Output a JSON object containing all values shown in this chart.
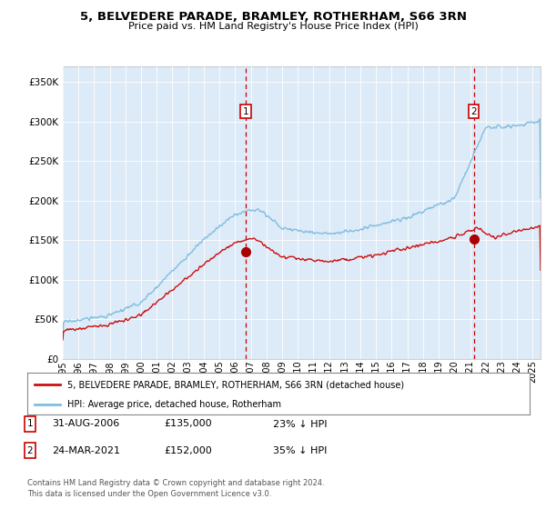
{
  "title": "5, BELVEDERE PARADE, BRAMLEY, ROTHERHAM, S66 3RN",
  "subtitle": "Price paid vs. HM Land Registry's House Price Index (HPI)",
  "background_color": "#ffffff",
  "plot_bg_color": "#ddeaf7",
  "ylim": [
    0,
    370000
  ],
  "yticks": [
    0,
    50000,
    100000,
    150000,
    200000,
    250000,
    300000,
    350000
  ],
  "ytick_labels": [
    "£0",
    "£50K",
    "£100K",
    "£150K",
    "£200K",
    "£250K",
    "£300K",
    "£350K"
  ],
  "xlim_start": 1995.0,
  "xlim_end": 2025.5,
  "xtick_years": [
    1995,
    1996,
    1997,
    1998,
    1999,
    2000,
    2001,
    2002,
    2003,
    2004,
    2005,
    2006,
    2007,
    2008,
    2009,
    2010,
    2011,
    2012,
    2013,
    2014,
    2015,
    2016,
    2017,
    2018,
    2019,
    2020,
    2021,
    2022,
    2023,
    2024,
    2025
  ],
  "purchase1_x": 2006.67,
  "purchase1_y": 135000,
  "purchase2_x": 2021.23,
  "purchase2_y": 152000,
  "legend_entry1": "5, BELVEDERE PARADE, BRAMLEY, ROTHERHAM, S66 3RN (detached house)",
  "legend_entry2": "HPI: Average price, detached house, Rotherham",
  "ann1_num": "1",
  "ann1_date": "31-AUG-2006",
  "ann1_price": "£135,000",
  "ann1_hpi": "23% ↓ HPI",
  "ann2_num": "2",
  "ann2_date": "24-MAR-2021",
  "ann2_price": "£152,000",
  "ann2_hpi": "35% ↓ HPI",
  "footer": "Contains HM Land Registry data © Crown copyright and database right 2024.\nThis data is licensed under the Open Government Licence v3.0.",
  "hpi_color": "#7fbfdf",
  "price_color": "#cc1111",
  "marker_color": "#aa0000"
}
